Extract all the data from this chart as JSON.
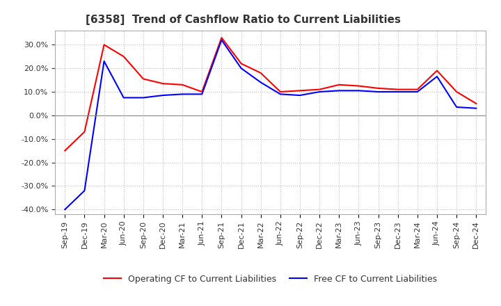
{
  "title": "[6358]  Trend of Cashflow Ratio to Current Liabilities",
  "labels": [
    "Sep-19",
    "Dec-19",
    "Mar-20",
    "Jun-20",
    "Sep-20",
    "Dec-20",
    "Mar-21",
    "Jun-21",
    "Sep-21",
    "Dec-21",
    "Mar-22",
    "Jun-22",
    "Sep-22",
    "Dec-22",
    "Mar-23",
    "Jun-23",
    "Sep-23",
    "Dec-23",
    "Mar-24",
    "Jun-24",
    "Sep-24",
    "Dec-24"
  ],
  "operating_cf": [
    -15.0,
    -7.0,
    30.0,
    25.0,
    15.5,
    13.5,
    13.0,
    10.0,
    33.0,
    22.0,
    18.0,
    10.0,
    10.5,
    11.0,
    13.0,
    12.5,
    11.5,
    11.0,
    11.0,
    19.0,
    10.0,
    5.0
  ],
  "free_cf": [
    -40.0,
    -32.0,
    23.0,
    7.5,
    7.5,
    8.5,
    9.0,
    9.0,
    32.0,
    20.0,
    14.0,
    9.0,
    8.5,
    10.0,
    10.5,
    10.5,
    10.0,
    10.0,
    10.0,
    16.5,
    3.5,
    3.0
  ],
  "operating_color": "#ff0000",
  "free_color": "#0000ff",
  "ylim_min": -42,
  "ylim_max": 36,
  "yticks": [
    -40,
    -30,
    -20,
    -10,
    0,
    10,
    20,
    30
  ],
  "background_color": "#ffffff",
  "plot_bg_color": "#ffffff",
  "grid_color": "#bbbbbb",
  "legend_op": "Operating CF to Current Liabilities",
  "legend_free": "Free CF to Current Liabilities",
  "title_fontsize": 11,
  "tick_fontsize": 8,
  "legend_fontsize": 9
}
